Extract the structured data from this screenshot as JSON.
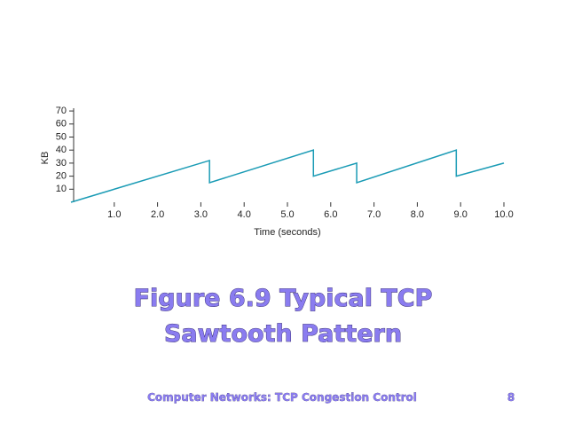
{
  "chart_data": {
    "type": "line",
    "y_label": "KB",
    "x_label": "Time (seconds)",
    "x": [
      0,
      3.2,
      3.2,
      5.6,
      5.6,
      6.6,
      6.6,
      8.9,
      8.9,
      10.0
    ],
    "values": [
      0,
      32,
      15,
      40,
      20,
      30,
      15,
      40,
      20,
      30
    ],
    "color": "#1a9bb5",
    "xlim": [
      0,
      10
    ],
    "ylim": [
      0,
      70
    ],
    "xticks": [
      {
        "value": 1,
        "label": "1.0"
      },
      {
        "value": 2,
        "label": "2.0"
      },
      {
        "value": 3,
        "label": "3.0"
      },
      {
        "value": 4,
        "label": "4.0"
      },
      {
        "value": 5,
        "label": "5.0"
      },
      {
        "value": 6,
        "label": "6.0"
      },
      {
        "value": 7,
        "label": "7.0"
      },
      {
        "value": 8,
        "label": "8.0"
      },
      {
        "value": 9,
        "label": "9.0"
      },
      {
        "value": 10,
        "label": "10.0"
      }
    ],
    "yticks": [
      10,
      20,
      30,
      40,
      50,
      60,
      70
    ]
  },
  "slide": {
    "title_lines": [
      "Figure 6.9 Typical TCP",
      "Sawtooth Pattern"
    ],
    "footer": "Computer Networks: TCP Congestion Control",
    "page_number": 8
  }
}
